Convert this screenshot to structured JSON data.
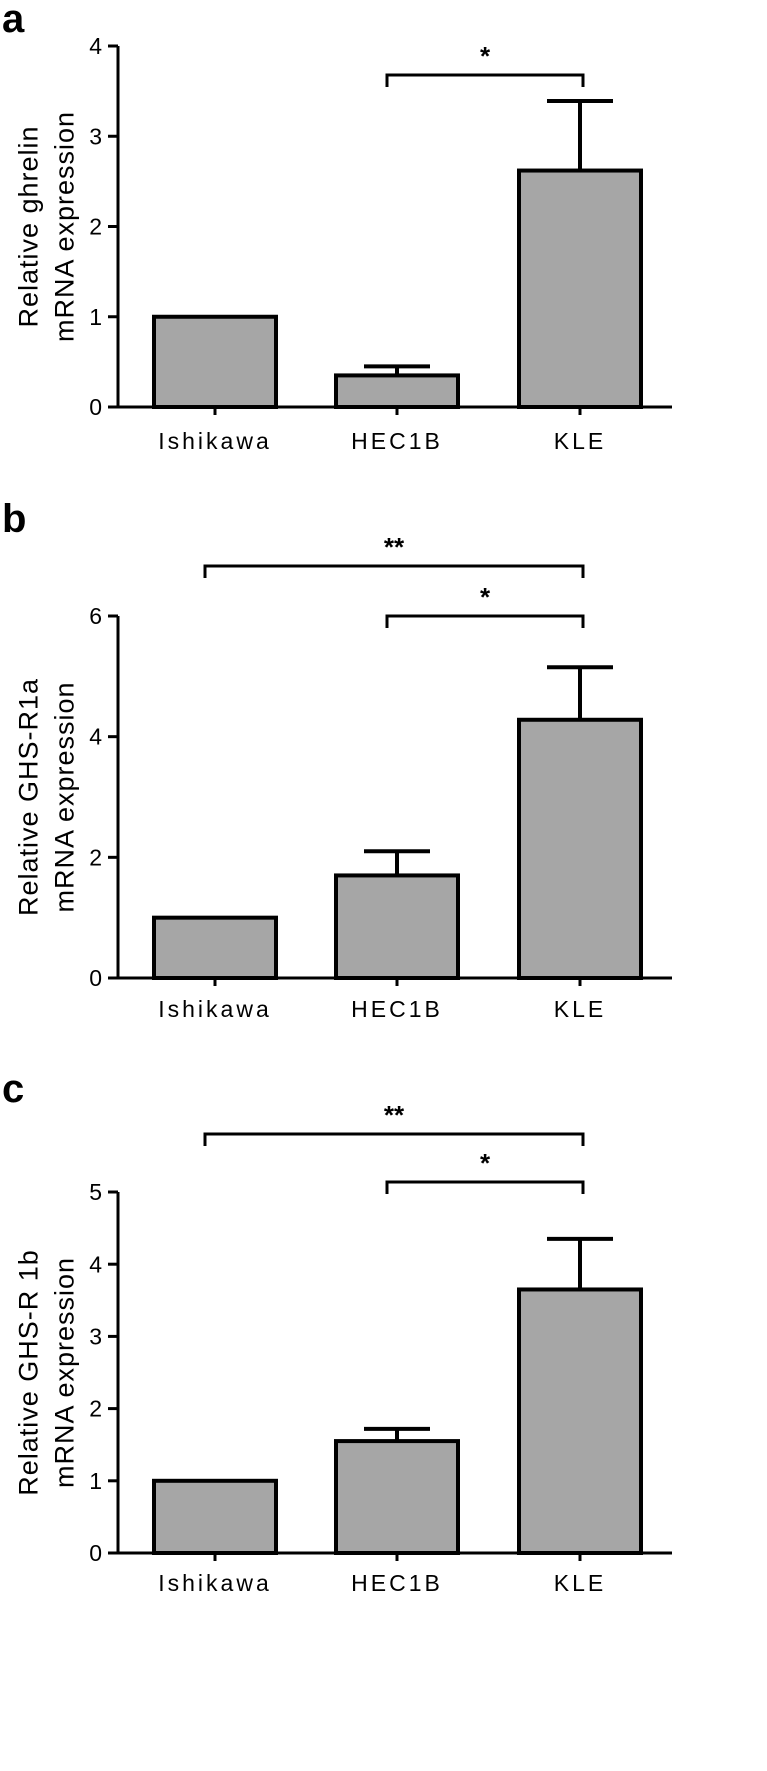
{
  "chart_data": [
    {
      "panel": "a",
      "type": "bar",
      "categories": [
        "Ishikawa",
        "HEC1B",
        "KLE"
      ],
      "values": [
        1.0,
        0.35,
        2.62
      ],
      "error": [
        0,
        0.1,
        0.77
      ],
      "ylabel": [
        "Relative ghrelin",
        "mRNA expression"
      ],
      "ylim": [
        0,
        4
      ],
      "yticks": [
        0,
        1,
        2,
        3,
        4
      ],
      "significance": [
        {
          "from": 1,
          "to": 2,
          "label": "*"
        }
      ],
      "bar_color": "#a6a6a6",
      "grid": false
    },
    {
      "panel": "b",
      "type": "bar",
      "categories": [
        "Ishikawa",
        "HEC1B",
        "KLE"
      ],
      "values": [
        1.0,
        1.7,
        4.28
      ],
      "error": [
        0,
        0.4,
        0.87
      ],
      "ylabel": [
        "Relative GHS-R1a",
        "mRNA expression"
      ],
      "ylim": [
        0,
        6
      ],
      "yticks": [
        0,
        2,
        4,
        6
      ],
      "significance": [
        {
          "from": 0,
          "to": 2,
          "label": "**"
        },
        {
          "from": 1,
          "to": 2,
          "label": "*"
        }
      ],
      "bar_color": "#a6a6a6",
      "grid": false
    },
    {
      "panel": "c",
      "type": "bar",
      "categories": [
        "Ishikawa",
        "HEC1B",
        "KLE"
      ],
      "values": [
        1.0,
        1.55,
        3.65
      ],
      "error": [
        0,
        0.17,
        0.7
      ],
      "ylabel": [
        "Relative GHS-R 1b",
        "mRNA expression"
      ],
      "ylim": [
        0,
        5
      ],
      "yticks": [
        0,
        1,
        2,
        3,
        4,
        5
      ],
      "significance": [
        {
          "from": 0,
          "to": 2,
          "label": "**"
        },
        {
          "from": 1,
          "to": 2,
          "label": "*"
        }
      ],
      "bar_color": "#a6a6a6",
      "grid": false
    }
  ]
}
